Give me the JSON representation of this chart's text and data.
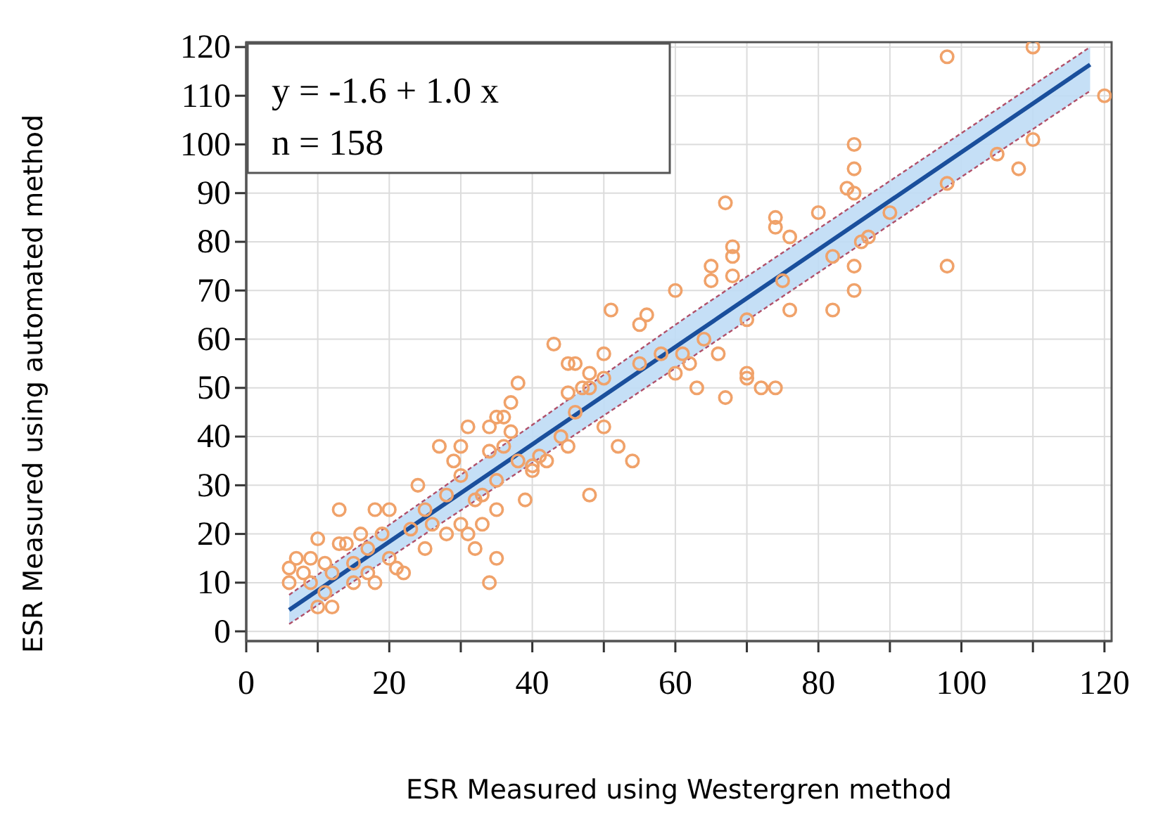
{
  "chart_data": {
    "type": "scatter",
    "xlabel": "ESR Measured using Westergren method",
    "ylabel": "ESR Measured using automated method",
    "annotations": [
      "y = -1.6 + 1.0 x",
      "n = 158"
    ],
    "xlim": [
      0,
      121
    ],
    "ylim": [
      -2,
      121
    ],
    "xticks": [
      0,
      {
        "value": 10,
        "label": null
      },
      20,
      {
        "value": 30,
        "label": null
      },
      40,
      {
        "value": 50,
        "label": null
      },
      60,
      {
        "value": 70,
        "label": null
      },
      80,
      {
        "value": 90,
        "label": null
      },
      100,
      {
        "value": 110,
        "label": null
      },
      120
    ],
    "yticks": [
      0,
      10,
      20,
      30,
      40,
      50,
      60,
      70,
      80,
      90,
      100,
      110,
      120
    ],
    "grid": true,
    "marker": "circle",
    "series": [
      {
        "color": "#f0a26a",
        "x": [
          6,
          6,
          7,
          8,
          9,
          9,
          10,
          10,
          11,
          11,
          12,
          12,
          13,
          13,
          14,
          15,
          15,
          16,
          17,
          17,
          18,
          18,
          19,
          20,
          20,
          21,
          22,
          23,
          24,
          25,
          25,
          26,
          27,
          28,
          28,
          29,
          30,
          30,
          30,
          31,
          31,
          32,
          32,
          33,
          33,
          34,
          34,
          34,
          35,
          35,
          35,
          35,
          36,
          36,
          37,
          37,
          38,
          38,
          39,
          40,
          40,
          41,
          42,
          43,
          44,
          45,
          45,
          45,
          46,
          46,
          47,
          48,
          48,
          48,
          50,
          50,
          50,
          51,
          52,
          54,
          55,
          55,
          56,
          58,
          60,
          60,
          61,
          62,
          63,
          64,
          65,
          65,
          66,
          67,
          67,
          68,
          68,
          68,
          70,
          70,
          70,
          72,
          74,
          74,
          74,
          75,
          76,
          76,
          80,
          82,
          82,
          84,
          85,
          85,
          85,
          85,
          85,
          86,
          87,
          90,
          98,
          98,
          98,
          105,
          108,
          110,
          110,
          120
        ],
        "values": [
          10,
          13,
          15,
          12,
          10,
          15,
          19,
          5,
          14,
          8,
          5,
          12,
          25,
          18,
          18,
          14,
          10,
          20,
          12,
          17,
          10,
          25,
          20,
          25,
          15,
          13,
          12,
          21,
          30,
          25,
          17,
          22,
          38,
          20,
          28,
          35,
          22,
          32,
          38,
          42,
          20,
          17,
          27,
          28,
          22,
          42,
          10,
          37,
          31,
          44,
          15,
          25,
          44,
          38,
          47,
          41,
          51,
          35,
          27,
          33,
          34,
          36,
          35,
          59,
          40,
          38,
          55,
          49,
          45,
          55,
          50,
          28,
          53,
          50,
          42,
          52,
          57,
          66,
          38,
          35,
          55,
          63,
          65,
          57,
          53,
          70,
          57,
          55,
          50,
          60,
          75,
          72,
          57,
          48,
          88,
          73,
          79,
          77,
          64,
          53,
          52,
          50,
          50,
          83,
          85,
          72,
          81,
          66,
          86,
          66,
          77,
          91,
          75,
          95,
          100,
          90,
          70,
          80,
          81,
          86,
          118,
          92,
          75,
          98,
          95,
          120,
          101,
          110
        ]
      },
      {
        "type": "line",
        "color": "#1a4f9c",
        "line_style": "solid",
        "marker": "none",
        "x": [
          6,
          62,
          118
        ],
        "values": [
          4.4,
          60.4,
          116.4
        ],
        "lower": [
          1.5,
          56,
          111
        ],
        "upper": [
          7.5,
          65,
          120
        ]
      },
      {
        "type": "line",
        "color": "#b0506a",
        "line_style": "dashed",
        "marker": "none",
        "x": [
          6,
          62,
          118
        ],
        "values": [
          1.5,
          56,
          111
        ]
      },
      {
        "type": "line",
        "color": "#b0506a",
        "line_style": "dashed",
        "marker": "none",
        "x": [
          6,
          62,
          118
        ],
        "values": [
          7.5,
          65,
          120
        ]
      }
    ]
  }
}
